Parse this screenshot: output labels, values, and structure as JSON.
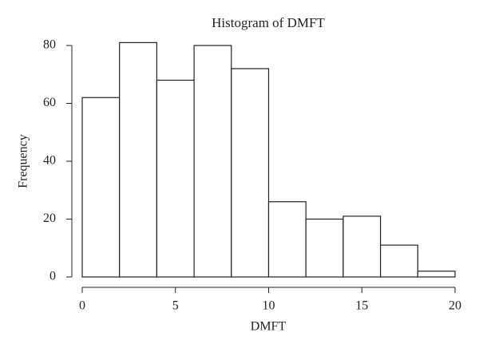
{
  "chart_data": {
    "type": "histogram",
    "title": "Histogram of DMFT",
    "x_label": "DMFT",
    "y_label": "Frequency",
    "bins": [
      0,
      2,
      4,
      6,
      8,
      10,
      12,
      14,
      16,
      18,
      20
    ],
    "values": [
      62,
      81,
      68,
      80,
      72,
      26,
      20,
      21,
      11,
      2
    ],
    "color": "#ffffff",
    "edgecolor": "#222222",
    "xlim": [
      0,
      20
    ],
    "xticks": [
      0,
      5,
      10,
      15,
      20
    ],
    "ylim": [
      0,
      80
    ],
    "yticks": [
      0,
      20,
      40,
      60,
      80
    ],
    "grid": false
  }
}
